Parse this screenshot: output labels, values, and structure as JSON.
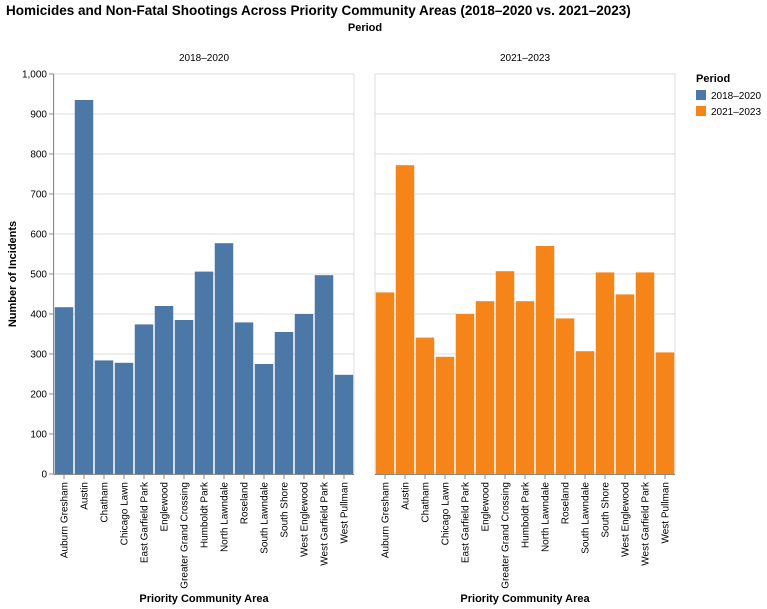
{
  "chart_data": {
    "type": "bar",
    "title": "Homicides and Non-Fatal Shootings Across Priority Community Areas (2018–2020 vs. 2021–2023)",
    "column_header": "Period",
    "xlabel": "Priority Community Area",
    "ylabel": "Number of Incidents",
    "ylim": [
      0,
      1000
    ],
    "y_ticks": [
      "0",
      "100",
      "200",
      "300",
      "400",
      "500",
      "600",
      "700",
      "800",
      "900",
      "1,000"
    ],
    "grid": true,
    "legend": {
      "title": "Period",
      "position": "right"
    },
    "categories": [
      "Auburn Gresham",
      "Austin",
      "Chatham",
      "Chicago Lawn",
      "East Garfield Park",
      "Englewood",
      "Greater Grand Crossing",
      "Humboldt Park",
      "North Lawndale",
      "Roseland",
      "South Lawndale",
      "South Shore",
      "West Englewood",
      "West Garfield Park",
      "West Pullman"
    ],
    "series": [
      {
        "name": "2018–2020",
        "color": "#4c78a8",
        "values": [
          417,
          935,
          284,
          278,
          374,
          420,
          385,
          506,
          577,
          379,
          275,
          355,
          400,
          497,
          248
        ]
      },
      {
        "name": "2021–2023",
        "color": "#f58518",
        "values": [
          454,
          772,
          341,
          293,
          400,
          432,
          507,
          432,
          570,
          389,
          307,
          504,
          449,
          504,
          304
        ]
      }
    ]
  }
}
